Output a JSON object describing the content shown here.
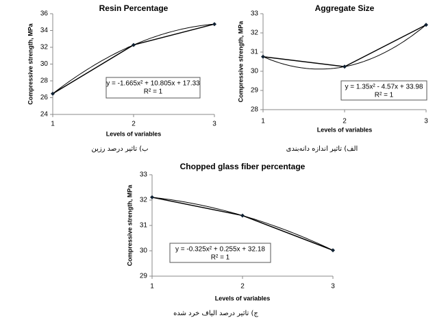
{
  "chart_data": [
    {
      "type": "line",
      "title": "Resin Percentage",
      "x_label": "Levels of variables",
      "y_label": "Compressive strength, MPa",
      "x": [
        1,
        2,
        3
      ],
      "xlim": [
        1,
        3
      ],
      "xticks": [
        1,
        2,
        3
      ],
      "ylim": [
        24,
        36
      ],
      "yticks": [
        24,
        26,
        28,
        30,
        32,
        34,
        36
      ],
      "series": [
        {
          "name": "Resin Percentage",
          "color": "#000000",
          "values": [
            26.47,
            32.28,
            34.76
          ]
        }
      ],
      "equation": "y = -1.665x² + 10.805x + 17.33",
      "r_squared": "R² = 1",
      "caption": "ب) تاثیر درصد رزین"
    },
    {
      "type": "line",
      "title": "Aggregate Size",
      "x_label": "Levels of variables",
      "y_label": "Compressive strength, MPa",
      "x": [
        1,
        2,
        3
      ],
      "xlim": [
        1,
        3
      ],
      "xticks": [
        1,
        2,
        3
      ],
      "ylim": [
        28,
        33
      ],
      "yticks": [
        28,
        29,
        30,
        31,
        32,
        33
      ],
      "series": [
        {
          "name": "Aggregate Size",
          "color": "#000000",
          "values": [
            30.76,
            30.24,
            32.42
          ]
        }
      ],
      "equation": "y = 1.35x² - 4.57x + 33.98",
      "r_squared": "R² = 1",
      "caption": "الف) تاثیر اندازه دانه‌بندی"
    },
    {
      "type": "line",
      "title": "Chopped glass fiber percentage",
      "x_label": "Levels of variables",
      "y_label": "Compressive strength, MPa",
      "x": [
        1,
        2,
        3
      ],
      "xlim": [
        1,
        3
      ],
      "xticks": [
        1,
        2,
        3
      ],
      "ylim": [
        29,
        33
      ],
      "yticks": [
        29,
        30,
        31,
        32,
        33
      ],
      "series": [
        {
          "name": "Chopped glass fiber percentage",
          "color": "#000000",
          "values": [
            32.11,
            31.39,
            30.02
          ]
        }
      ],
      "equation": "y = -0.325x² + 0.255x + 32.18",
      "r_squared": "R² = 1",
      "caption": "ج) تاثیر درصد الیاف خرد شده"
    }
  ]
}
